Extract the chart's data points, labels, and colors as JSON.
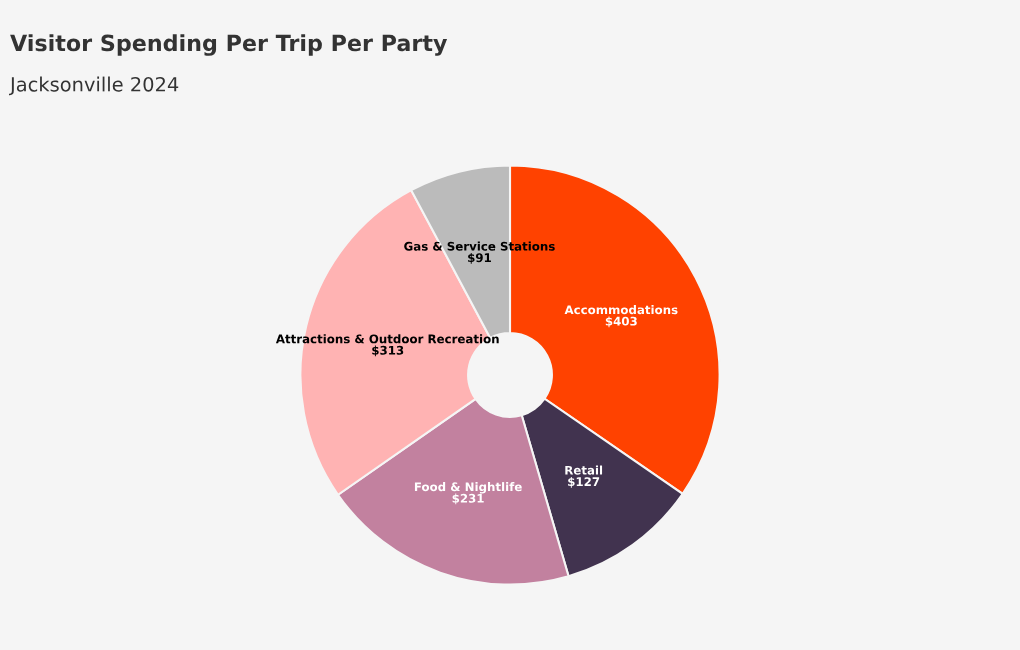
{
  "chart_data": {
    "type": "donut",
    "title": "Visitor Spending Per Trip Per Party",
    "subtitle": "Jacksonville 2024",
    "categories": [
      "Accommodations",
      "Retail",
      "Food & Nightlife",
      "Attractions & Outdoor Recreation",
      "Gas & Service Stations"
    ],
    "values": [
      403,
      127,
      231,
      313,
      91
    ],
    "value_labels": [
      "$403",
      "$127",
      "$231",
      "$313",
      "$91"
    ],
    "colors": [
      "#ff4200",
      "#41334f",
      "#c2819f",
      "#ffb3b3",
      "#bbbbbb"
    ],
    "legend": false
  }
}
